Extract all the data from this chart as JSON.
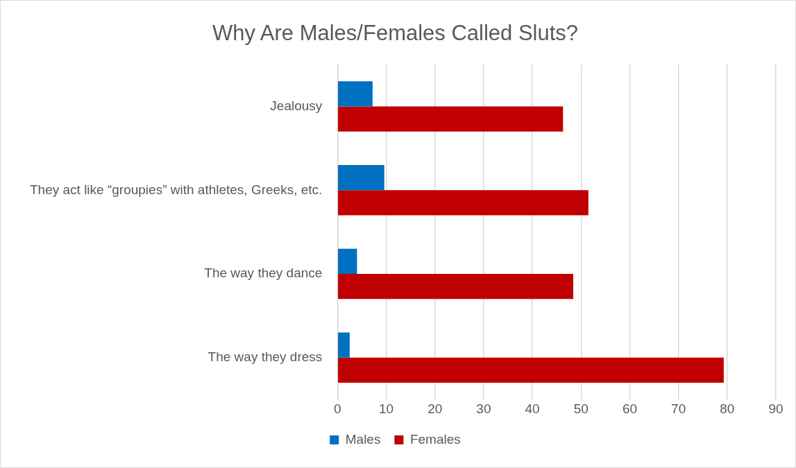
{
  "chart_data": {
    "type": "bar",
    "orientation": "horizontal",
    "title": "Why Are Males/Females Called Sluts?",
    "categories": [
      "Jealousy",
      "They act like “groupies” with athletes, Greeks, etc.",
      "The way they dance",
      "The way they dress"
    ],
    "series": [
      {
        "name": "Males",
        "color": "#0070c0",
        "values": [
          7.2,
          9.6,
          4.0,
          2.5
        ]
      },
      {
        "name": "Females",
        "color": "#c00000",
        "values": [
          46.3,
          51.5,
          48.4,
          79.3
        ]
      }
    ],
    "xlim": [
      0,
      90
    ],
    "xticks": [
      0,
      10,
      20,
      30,
      40,
      50,
      60,
      70,
      80,
      90
    ],
    "grid": "x",
    "legend": "bottom"
  }
}
